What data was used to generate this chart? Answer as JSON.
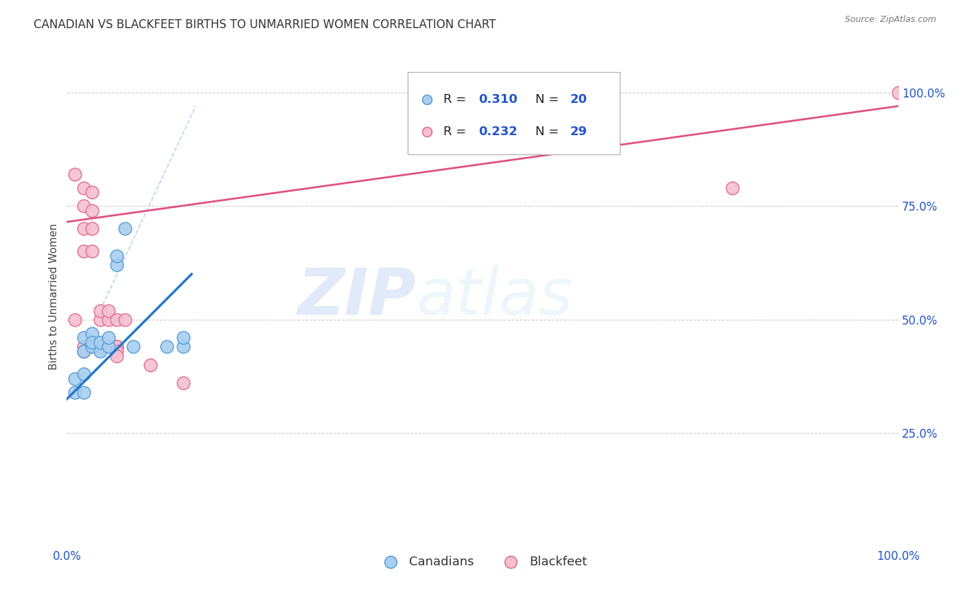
{
  "title": "CANADIAN VS BLACKFEET BIRTHS TO UNMARRIED WOMEN CORRELATION CHART",
  "source": "Source: ZipAtlas.com",
  "ylabel": "Births to Unmarried Women",
  "watermark_zip": "ZIP",
  "watermark_atlas": "atlas",
  "canadians": {
    "label": "Canadians",
    "R": 0.31,
    "N": 20,
    "color": "#a8cff0",
    "edge_color": "#5a9fd4",
    "line_color": "#2277cc",
    "x": [
      0.01,
      0.01,
      0.02,
      0.02,
      0.02,
      0.02,
      0.03,
      0.03,
      0.03,
      0.04,
      0.04,
      0.05,
      0.05,
      0.06,
      0.06,
      0.07,
      0.08,
      0.12,
      0.14,
      0.14
    ],
    "y": [
      0.34,
      0.37,
      0.34,
      0.38,
      0.43,
      0.46,
      0.44,
      0.47,
      0.45,
      0.43,
      0.45,
      0.44,
      0.46,
      0.62,
      0.64,
      0.7,
      0.44,
      0.44,
      0.44,
      0.46
    ]
  },
  "blackfeet": {
    "label": "Blackfeet",
    "R": 0.232,
    "N": 29,
    "color": "#f5c0d0",
    "edge_color": "#e07090",
    "line_color": "#e05080",
    "x": [
      0.01,
      0.01,
      0.02,
      0.02,
      0.02,
      0.02,
      0.02,
      0.02,
      0.03,
      0.03,
      0.03,
      0.03,
      0.03,
      0.04,
      0.04,
      0.04,
      0.05,
      0.05,
      0.05,
      0.06,
      0.06,
      0.06,
      0.06,
      0.06,
      0.07,
      0.1,
      0.14,
      0.8,
      1.0
    ],
    "y": [
      0.82,
      0.5,
      0.79,
      0.75,
      0.7,
      0.65,
      0.44,
      0.43,
      0.78,
      0.74,
      0.7,
      0.65,
      0.44,
      0.5,
      0.52,
      0.44,
      0.5,
      0.52,
      0.44,
      0.5,
      0.44,
      0.44,
      0.43,
      0.42,
      0.5,
      0.4,
      0.36,
      0.79,
      1.0
    ]
  },
  "blue_line": {
    "x0": 0.0,
    "y0": 0.325,
    "x1": 0.15,
    "y1": 0.6
  },
  "pink_line": {
    "x0": 0.0,
    "y0": 0.715,
    "x1": 1.0,
    "y1": 0.97
  },
  "ref_line": {
    "x0": 0.04,
    "y0": 0.52,
    "x1": 0.155,
    "y1": 0.97
  },
  "xlim": [
    0.0,
    1.0
  ],
  "ylim": [
    0.0,
    1.1
  ],
  "yticks": [
    0.25,
    0.5,
    0.75,
    1.0
  ],
  "ytick_labels": [
    "25.0%",
    "50.0%",
    "75.0%",
    "100.0%"
  ],
  "background_color": "#ffffff",
  "grid_color": "#cccccc"
}
